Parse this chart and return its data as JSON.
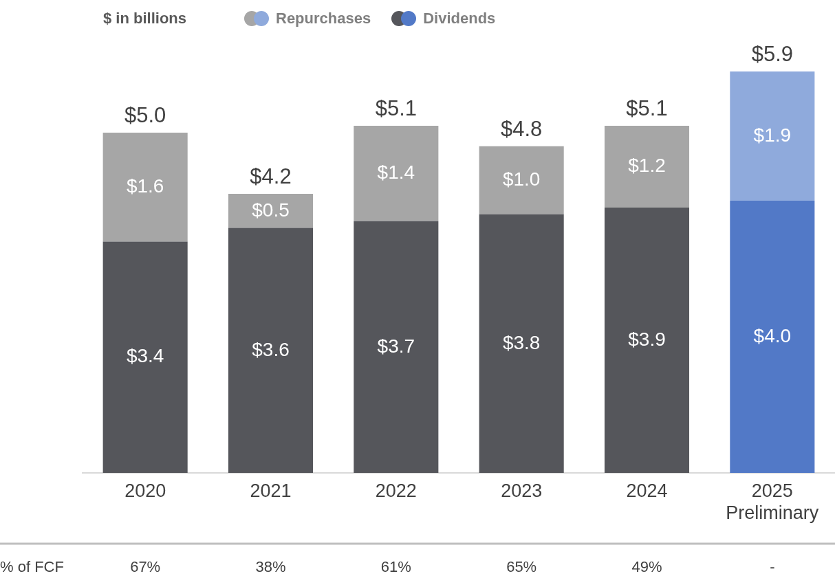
{
  "chart_data": {
    "type": "bar",
    "stacked": true,
    "categories": [
      "2020",
      "2021",
      "2022",
      "2023",
      "2024",
      "2025\nPreliminary"
    ],
    "series": [
      {
        "name": "Dividends",
        "colors": [
          "#55565b",
          "#55565b",
          "#55565b",
          "#55565b",
          "#55565b",
          "#5279c7"
        ],
        "values": [
          3.4,
          3.6,
          3.7,
          3.8,
          3.9,
          4.0
        ],
        "value_labels": [
          "$3.4",
          "$3.6",
          "$3.7",
          "$3.8",
          "$3.9",
          "$4.0"
        ]
      },
      {
        "name": "Repurchases",
        "colors": [
          "#a6a6a6",
          "#a6a6a6",
          "#a6a6a6",
          "#a6a6a6",
          "#a6a6a6",
          "#8faadc"
        ],
        "values": [
          1.6,
          0.5,
          1.4,
          1.0,
          1.2,
          1.9
        ],
        "value_labels": [
          "$1.6",
          "$0.5",
          "$1.4",
          "$1.0",
          "$1.2",
          "$1.9"
        ]
      }
    ],
    "totals": [
      "$5.0",
      "$4.2",
      "$5.1",
      "$4.8",
      "$5.1",
      "$5.9"
    ],
    "tick_labels": "x",
    "grid": false,
    "legend": "top",
    "annotations": [
      "$ in billions",
      "% of FCF",
      "67%",
      "38%",
      "61%",
      "65%",
      "49%",
      "-"
    ]
  }
}
